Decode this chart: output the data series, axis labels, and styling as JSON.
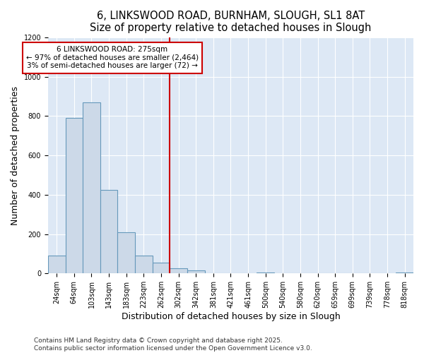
{
  "title1": "6, LINKSWOOD ROAD, BURNHAM, SLOUGH, SL1 8AT",
  "title2": "Size of property relative to detached houses in Slough",
  "xlabel": "Distribution of detached houses by size in Slough",
  "ylabel": "Number of detached properties",
  "footnote1": "Contains HM Land Registry data © Crown copyright and database right 2025.",
  "footnote2": "Contains public sector information licensed under the Open Government Licence v3.0.",
  "bins": [
    "24sqm",
    "64sqm",
    "103sqm",
    "143sqm",
    "183sqm",
    "223sqm",
    "262sqm",
    "302sqm",
    "342sqm",
    "381sqm",
    "421sqm",
    "461sqm",
    "500sqm",
    "540sqm",
    "580sqm",
    "620sqm",
    "659sqm",
    "699sqm",
    "739sqm",
    "778sqm",
    "818sqm"
  ],
  "values": [
    90,
    790,
    870,
    425,
    210,
    90,
    55,
    25,
    15,
    0,
    0,
    0,
    5,
    0,
    0,
    0,
    0,
    0,
    0,
    0,
    5
  ],
  "bar_color": "#ccd9e8",
  "bar_edge_color": "#6699bb",
  "vline_color": "#cc0000",
  "annotation_title": "6 LINKSWOOD ROAD: 275sqm",
  "annotation_line1": "← 97% of detached houses are smaller (2,464)",
  "annotation_line2": "3% of semi-detached houses are larger (72) →",
  "ylim": [
    0,
    1200
  ],
  "yticks": [
    0,
    200,
    400,
    600,
    800,
    1000,
    1200
  ],
  "bg_color": "#dde8f5",
  "fig_bg_color": "#ffffff",
  "title_fontsize": 10.5,
  "axis_label_fontsize": 9,
  "tick_fontsize": 7,
  "footnote_fontsize": 6.5,
  "vline_xindex": 6.5
}
